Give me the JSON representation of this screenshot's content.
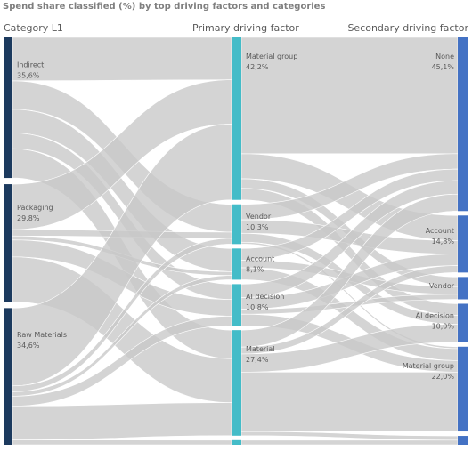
{
  "chart_data": {
    "type": "sankey",
    "title": "Spend share classified (%) by top driving factors and categories",
    "columns": [
      "Category L1",
      "Primary driving factor",
      "Secondary driving factor"
    ],
    "nodes": {
      "category": [
        {
          "id": "indirect",
          "name": "Indirect",
          "value_label": "35,6%",
          "value": 35.6
        },
        {
          "id": "packaging",
          "name": "Packaging",
          "value_label": "29,8%",
          "value": 29.8
        },
        {
          "id": "raw",
          "name": "Raw Materials",
          "value_label": "34,6%",
          "value": 34.6
        }
      ],
      "primary": [
        {
          "id": "p_matgroup",
          "name": "Material group",
          "value_label": "42,2%",
          "value": 42.2
        },
        {
          "id": "p_vendor",
          "name": "Vendor",
          "value_label": "10,3%",
          "value": 10.3
        },
        {
          "id": "p_account",
          "name": "Account",
          "value_label": "8,1%",
          "value": 8.1
        },
        {
          "id": "p_ai",
          "name": "AI decision",
          "value_label": "10,8%",
          "value": 10.8
        },
        {
          "id": "p_material",
          "name": "Material",
          "value_label": "27,4%",
          "value": 27.4
        },
        {
          "id": "p_other",
          "name": "",
          "value_label": "",
          "value": 1.2
        }
      ],
      "secondary": [
        {
          "id": "s_none",
          "name": "None",
          "value_label": "45,1%",
          "value": 45.1
        },
        {
          "id": "s_account",
          "name": "Account",
          "value_label": "14,8%",
          "value": 14.8
        },
        {
          "id": "s_vendor",
          "name": "Vendor",
          "value_label": "",
          "value": 5.8
        },
        {
          "id": "s_ai",
          "name": "AI decision",
          "value_label": "10,0%",
          "value": 10.0
        },
        {
          "id": "s_matgroup",
          "name": "Material group",
          "value_label": "22,0%",
          "value": 22.0
        },
        {
          "id": "s_other",
          "name": "",
          "value_label": "",
          "value": 2.3
        }
      ]
    },
    "links_stage1": [
      {
        "source": "indirect",
        "target": "p_matgroup",
        "value": 11.0
      },
      {
        "source": "indirect",
        "target": "p_vendor",
        "value": 7.2
      },
      {
        "source": "indirect",
        "target": "p_account",
        "value": 6.0
      },
      {
        "source": "indirect",
        "target": "p_ai",
        "value": 4.0
      },
      {
        "source": "indirect",
        "target": "p_material",
        "value": 7.4
      },
      {
        "source": "packaging",
        "target": "p_matgroup",
        "value": 11.5
      },
      {
        "source": "packaging",
        "target": "p_vendor",
        "value": 1.6
      },
      {
        "source": "packaging",
        "target": "p_account",
        "value": 1.0
      },
      {
        "source": "packaging",
        "target": "p_ai",
        "value": 4.3
      },
      {
        "source": "packaging",
        "target": "p_material",
        "value": 11.4
      },
      {
        "source": "raw",
        "target": "p_matgroup",
        "value": 19.7
      },
      {
        "source": "raw",
        "target": "p_vendor",
        "value": 1.5
      },
      {
        "source": "raw",
        "target": "p_account",
        "value": 1.1
      },
      {
        "source": "raw",
        "target": "p_ai",
        "value": 2.5
      },
      {
        "source": "raw",
        "target": "p_material",
        "value": 8.6
      },
      {
        "source": "raw",
        "target": "p_other",
        "value": 1.2
      }
    ],
    "links_stage2": [
      {
        "source": "p_matgroup",
        "target": "s_none",
        "value": 30.2
      },
      {
        "source": "p_matgroup",
        "target": "s_account",
        "value": 6.5
      },
      {
        "source": "p_matgroup",
        "target": "s_vendor",
        "value": 2.5
      },
      {
        "source": "p_matgroup",
        "target": "s_ai",
        "value": 3.0
      },
      {
        "source": "p_vendor",
        "target": "s_none",
        "value": 4.0
      },
      {
        "source": "p_vendor",
        "target": "s_account",
        "value": 3.5
      },
      {
        "source": "p_vendor",
        "target": "s_ai",
        "value": 2.3
      },
      {
        "source": "p_vendor",
        "target": "s_matgroup",
        "value": 0.5
      },
      {
        "source": "p_account",
        "target": "s_none",
        "value": 3.0
      },
      {
        "source": "p_account",
        "target": "s_vendor",
        "value": 2.0
      },
      {
        "source": "p_account",
        "target": "s_matgroup",
        "value": 3.1
      },
      {
        "source": "p_ai",
        "target": "s_none",
        "value": 3.5
      },
      {
        "source": "p_ai",
        "target": "s_account",
        "value": 3.0
      },
      {
        "source": "p_ai",
        "target": "s_vendor",
        "value": 1.3
      },
      {
        "source": "p_ai",
        "target": "s_matgroup",
        "value": 3.0
      },
      {
        "source": "p_material",
        "target": "s_none",
        "value": 4.4
      },
      {
        "source": "p_material",
        "target": "s_account",
        "value": 1.8
      },
      {
        "source": "p_material",
        "target": "s_ai",
        "value": 4.7
      },
      {
        "source": "p_material",
        "target": "s_matgroup",
        "value": 15.4
      },
      {
        "source": "p_material",
        "target": "s_other",
        "value": 1.1
      },
      {
        "source": "p_other",
        "target": "s_other",
        "value": 1.2
      }
    ],
    "colors": {
      "category": "#1c3a5e",
      "primary": "#44bcc8",
      "secondary": "#4472c4",
      "link": "#c8c8c8"
    }
  }
}
